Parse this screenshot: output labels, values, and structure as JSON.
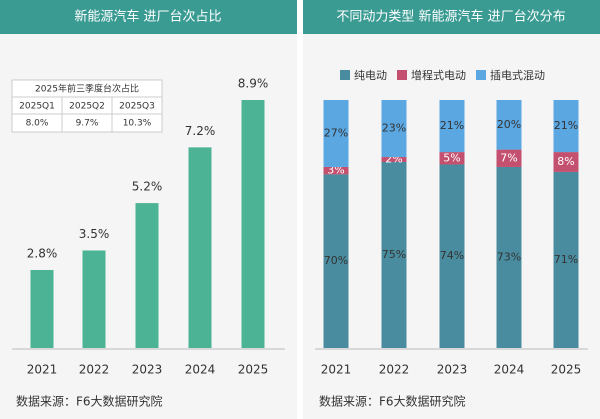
{
  "chart_data": [
    {
      "type": "bar",
      "title": "新能源汽车 进厂台次占比",
      "categories": [
        "2021",
        "2022",
        "2023",
        "2024",
        "2025"
      ],
      "values": [
        2.8,
        3.5,
        5.2,
        7.2,
        8.9
      ],
      "value_labels": [
        "2.8%",
        "3.5%",
        "5.2%",
        "7.2%",
        "8.9%"
      ],
      "color": "#4cb394",
      "inset_table": {
        "title": "2025年前三季度台次占比",
        "headers": [
          "2025Q1",
          "2025Q2",
          "2025Q3"
        ],
        "values": [
          "8.0%",
          "9.7%",
          "10.3%"
        ]
      },
      "source": "数据来源：F6大数据研究院"
    },
    {
      "type": "stacked_bar",
      "title": "不同动力类型 新能源汽车 进厂台次分布",
      "categories": [
        "2021",
        "2022",
        "2023",
        "2024",
        "2025"
      ],
      "series": [
        {
          "name": "纯电动",
          "color": "#4a8c9f",
          "values": [
            70,
            75,
            74,
            73,
            71
          ],
          "value_labels": [
            "70%",
            "75%",
            "74%",
            "73%",
            "71%"
          ]
        },
        {
          "name": "增程式电动",
          "color": "#c4506f",
          "values": [
            3,
            2,
            5,
            7,
            8
          ],
          "value_labels": [
            "3%",
            "2%",
            "5%",
            "7%",
            "8%"
          ]
        },
        {
          "name": "插电式混动",
          "color": "#5aa7e2",
          "values": [
            27,
            23,
            21,
            20,
            21
          ],
          "value_labels": [
            "27%",
            "23%",
            "21%",
            "20%",
            "21%"
          ]
        }
      ],
      "source": "数据来源：F6大数据研究院"
    }
  ]
}
